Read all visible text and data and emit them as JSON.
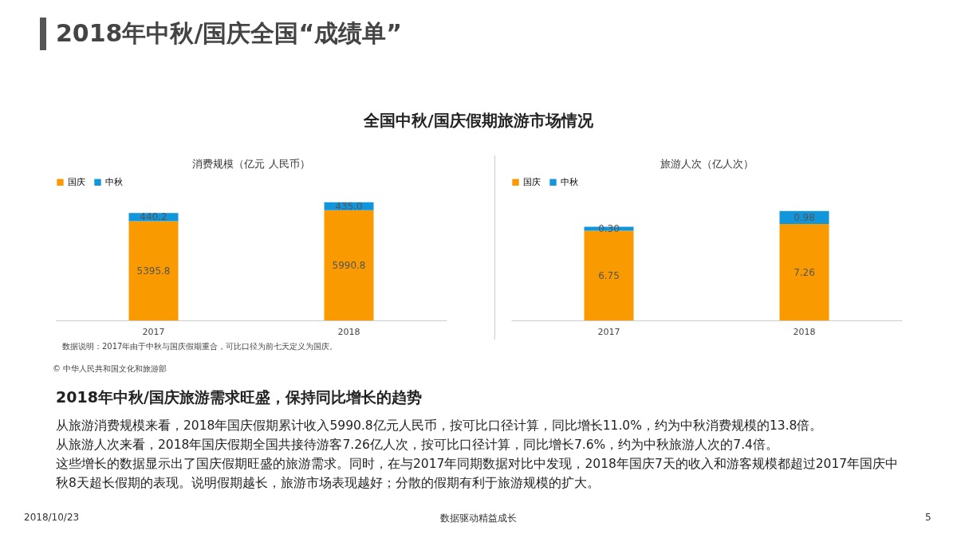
{
  "chart_data": [
    {
      "type": "other",
      "title": "2018年中秋/国庆全国“成绩单”",
      "subtitle": "全国中秋/国庆假期旅游市场情况"
    },
    {
      "type": "bar",
      "title": "消费规模（亿元 人民币）",
      "categories": [
        "2017",
        "2018"
      ],
      "stacked": true,
      "legend": "top",
      "tick_labels": "x",
      "series": [
        {
          "name": "国庆",
          "color": "#f99a00",
          "values": [
            5395.8,
            5990.8
          ],
          "value_labels": [
            "5395.8",
            "5990.8"
          ]
        },
        {
          "name": "中秋",
          "color": "#1296db",
          "values": [
            440.2,
            435.0
          ],
          "value_labels": [
            "440.2",
            "435.0"
          ]
        }
      ],
      "annotations": [
        "数据说明：2017年由于中秋与国庆假期重合，可比口径为前七天定义为国庆。"
      ]
    },
    {
      "type": "bar",
      "title": "旅游人次（亿人次）",
      "categories": [
        "2017",
        "2018"
      ],
      "stacked": true,
      "legend": "top",
      "tick_labels": "x",
      "series": [
        {
          "name": "国庆",
          "color": "#f99a00",
          "values": [
            6.75,
            7.26
          ],
          "value_labels": [
            "6.75",
            "7.26"
          ]
        },
        {
          "name": "中秋",
          "color": "#1296db",
          "values": [
            0.3,
            0.98
          ],
          "value_labels": [
            "0.30",
            "0.98"
          ]
        }
      ]
    },
    {
      "type": "other",
      "title": "2018年中秋/国庆旅游需求旺盛，保持同比增长的趋势",
      "annotations": [
        "© 中华人民共和国文化和旅游部",
        "从旅游消费规模来看，2018年国庆假期累计收入5990.8亿元人民币，按可比口径计算，同比增长11.0%，约为中秋消费规模的13.8倍。",
        "从旅游人次来看，2018年国庆假期全国共接待游客7.26亿人次，按可比口径计算，同比增长7.6%，约为中秋旅游人次的7.4倍。",
        "这些增长的数据显示出了国庆假期旺盛的旅游需求。同时，在与2017年同期数据对比中发现，2018年国庆7天的收入和游客规模都超过2017年国庆中秋8天超长假期的表现。说明假期越长，旅游市场表现越好；分散的假期有利于旅游规模的扩大。",
        "2018/10/23",
        "数据驱动精益成长",
        "5"
      ]
    }
  ]
}
